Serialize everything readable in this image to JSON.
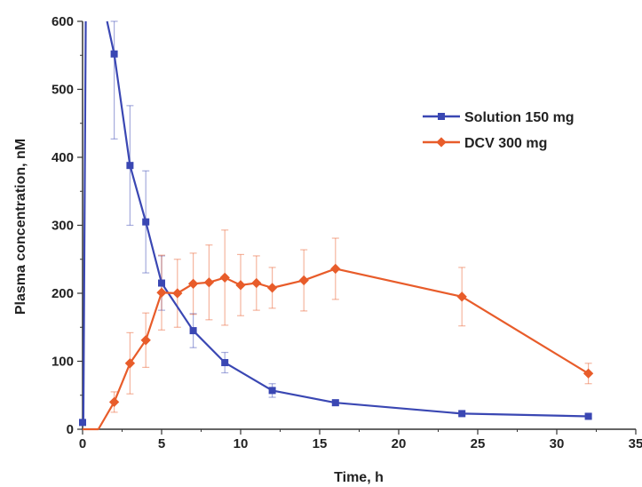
{
  "chart_data": {
    "type": "line",
    "title": "",
    "xlabel": "Time, h",
    "ylabel": "Plasma concentration, nM",
    "xlim": [
      0,
      35
    ],
    "ylim": [
      0,
      600
    ],
    "xticks": [
      0,
      5,
      10,
      15,
      20,
      25,
      30,
      35
    ],
    "yticks": [
      0,
      100,
      200,
      300,
      400,
      500,
      600
    ],
    "grid": false,
    "legend_position": "top-right",
    "series": [
      {
        "name": "Solution 150 mg",
        "color": "#3a47b3",
        "marker": "square",
        "x": [
          0,
          2,
          3,
          4,
          5,
          7,
          9,
          12,
          16,
          24,
          32
        ],
        "y": [
          10,
          552,
          388,
          305,
          215,
          145,
          98,
          57,
          39,
          23,
          19
        ],
        "error": [
          0,
          125,
          88,
          75,
          40,
          25,
          15,
          10,
          4,
          3,
          3
        ]
      },
      {
        "name": "DCV 300 mg",
        "color": "#e85c2a",
        "marker": "diamond",
        "x": [
          0,
          1,
          2,
          3,
          4,
          5,
          6,
          7,
          8,
          9,
          10,
          11,
          12,
          14,
          16,
          24,
          32
        ],
        "y": [
          0,
          0,
          40,
          97,
          131,
          201,
          200,
          214,
          216,
          223,
          212,
          215,
          208,
          219,
          236,
          195,
          82
        ],
        "error": [
          0,
          0,
          15,
          45,
          40,
          55,
          50,
          45,
          55,
          70,
          45,
          40,
          30,
          45,
          45,
          43,
          15
        ]
      }
    ]
  }
}
